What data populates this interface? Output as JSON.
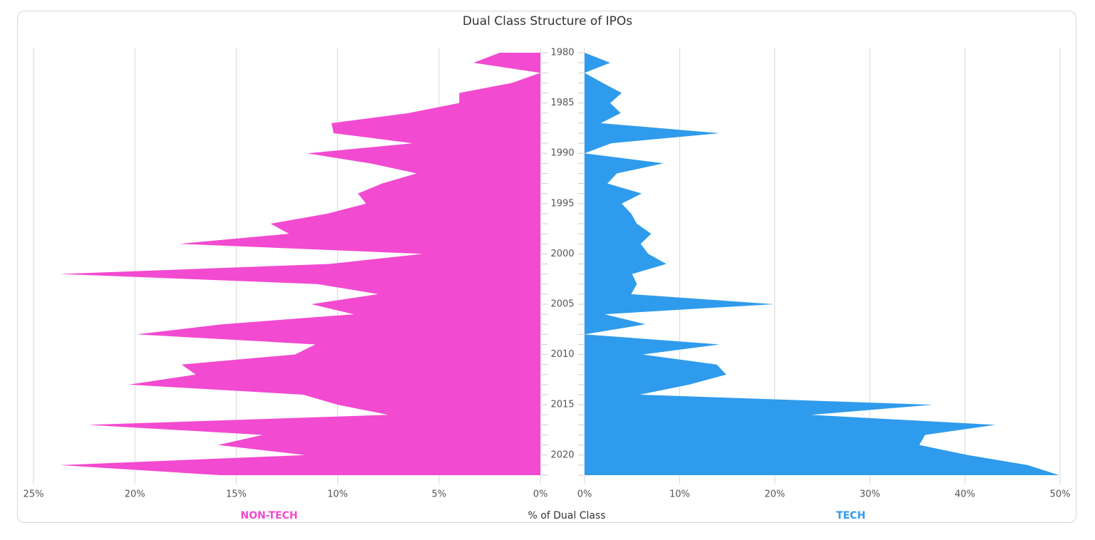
{
  "chart_data": {
    "type": "butterfly-area",
    "title": "Dual Class Structure of IPOs",
    "axis_title": "% of Dual Class",
    "x": [
      1980,
      1981,
      1982,
      1983,
      1984,
      1985,
      1986,
      1987,
      1988,
      1989,
      1990,
      1991,
      1992,
      1993,
      1994,
      1995,
      1996,
      1997,
      1998,
      1999,
      2000,
      2001,
      2002,
      2003,
      2004,
      2005,
      2006,
      2007,
      2008,
      2009,
      2010,
      2011,
      2012,
      2013,
      2014,
      2015,
      2016,
      2017,
      2018,
      2019,
      2020,
      2021,
      2022
    ],
    "xlim": [
      1980,
      2022
    ],
    "xticks": [
      1980,
      1985,
      1990,
      1995,
      2000,
      2005,
      2010,
      2015,
      2020
    ],
    "grid": true,
    "series": [
      {
        "name": "NON-TECH",
        "color": "#f24ad0",
        "side": "left",
        "lim": [
          0,
          25
        ],
        "ticks": [
          {
            "value": 25,
            "label": "25%"
          },
          {
            "value": 20,
            "label": "20%"
          },
          {
            "value": 15,
            "label": "15%"
          },
          {
            "value": 10,
            "label": "10%"
          },
          {
            "value": 5,
            "label": "5%"
          },
          {
            "value": 0,
            "label": "0%"
          }
        ],
        "values": [
          2.0,
          3.3,
          0,
          1.4,
          4.0,
          4.0,
          6.5,
          10.3,
          10.2,
          6.3,
          11.5,
          8.4,
          6.1,
          7.8,
          9.0,
          8.6,
          10.5,
          13.3,
          12.4,
          17.8,
          5.8,
          10.4,
          23.7,
          11.0,
          8.0,
          11.3,
          9.2,
          15.7,
          19.9,
          11.1,
          12.1,
          17.7,
          17.0,
          20.3,
          11.7,
          10.0,
          7.5,
          22.3,
          13.7,
          15.9,
          11.6,
          23.7,
          15.8
        ]
      },
      {
        "name": "TECH",
        "color": "#2f9bec",
        "side": "right",
        "lim": [
          0,
          50
        ],
        "ticks": [
          {
            "value": 0,
            "label": "0%"
          },
          {
            "value": 10,
            "label": "10%"
          },
          {
            "value": 20,
            "label": "20%"
          },
          {
            "value": 30,
            "label": "30%"
          },
          {
            "value": 40,
            "label": "40%"
          },
          {
            "value": 50,
            "label": "50%"
          }
        ],
        "values": [
          0,
          2.7,
          0,
          1.9,
          3.9,
          2.7,
          3.8,
          1.7,
          14.2,
          2.8,
          0,
          8.3,
          3.4,
          2.4,
          6.0,
          3.9,
          4.9,
          5.5,
          7.0,
          5.9,
          6.7,
          8.6,
          5.0,
          5.5,
          4.9,
          19.9,
          2.1,
          6.4,
          0,
          14.2,
          6.1,
          13.9,
          14.9,
          11.0,
          5.8,
          36.6,
          23.8,
          43.2,
          35.8,
          35.2,
          40.3,
          46.6,
          49.9
        ]
      }
    ]
  }
}
